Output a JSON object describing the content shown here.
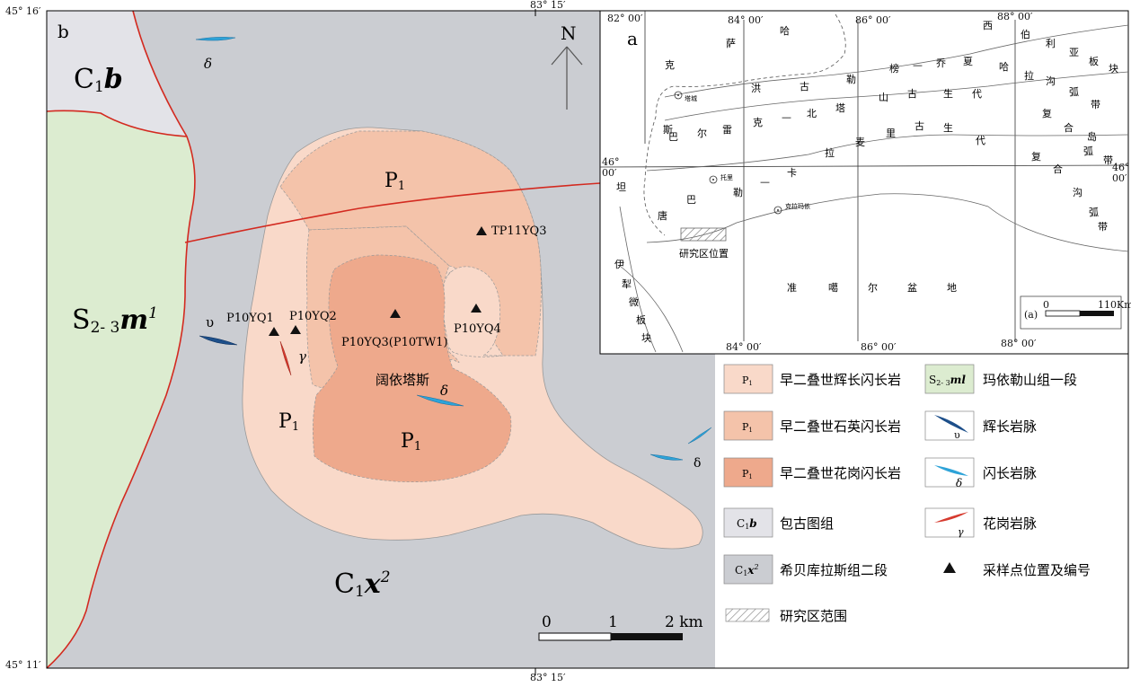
{
  "frame": {
    "lat_top": "45° 16′",
    "lat_bottom": "45° 11′",
    "lon_top": "83° 15′",
    "lon_bottom": "83° 15′"
  },
  "map_b": {
    "panel_label": "b",
    "north": "N",
    "unit_c1b": {
      "main": "C",
      "sub": "1",
      "ital": "b"
    },
    "unit_s23": {
      "main": "S",
      "sub": "2- 3",
      "ital": "m",
      "sup": "1"
    },
    "unit_c1x2": {
      "main": "C",
      "sub": "1",
      "ital": "x",
      "sup": "2"
    },
    "intrusions": [
      {
        "main": "P",
        "sub": "1"
      },
      {
        "main": "P",
        "sub": "1"
      },
      {
        "main": "P",
        "sub": "1"
      }
    ],
    "place_name": "阔依塔斯",
    "samples": [
      "TP11YQ3",
      "P10YQ1",
      "P10YQ2",
      "P10YQ3(P10TW1)",
      "P10YQ4"
    ],
    "dike_labels": {
      "delta": "δ",
      "upsilon": "υ",
      "gamma": "γ"
    },
    "scale": {
      "ticks": [
        "0",
        "1",
        "2 km"
      ]
    }
  },
  "inset_a": {
    "panel_label": "a",
    "lon_top": [
      "82° 00′",
      "84° 00′",
      "86° 00′",
      "88° 00′"
    ],
    "lon_bottom": [
      "84° 00′",
      "86° 00′",
      "88° 00′"
    ],
    "lat_left": [
      "46°",
      "00′"
    ],
    "lat_right": [
      "46°",
      "00′"
    ],
    "region_chars": [
      "西",
      "伯",
      "利",
      "亚",
      "板",
      "块",
      "哈",
      "拉",
      "沟",
      "弧",
      "带",
      "复",
      "合",
      "岛",
      "弧",
      "带",
      "复",
      "合",
      "沟",
      "弧",
      "带",
      "萨",
      "克",
      "哈",
      "斯",
      "洪",
      "古",
      "勒",
      "榜",
      "—",
      "乔",
      "夏",
      "巴",
      "尔",
      "雷",
      "克",
      "—",
      "北",
      "塔",
      "山",
      "古",
      "生",
      "代",
      "拉",
      "麦",
      "里",
      "古",
      "生",
      "代",
      "巴",
      "勒",
      "—",
      "卡",
      "坦",
      "唐",
      "伊",
      "犁",
      "微",
      "板",
      "块",
      "准",
      "噶",
      "尔",
      "盆",
      "地"
    ],
    "towns": [
      "塔城",
      "托里",
      "克拉玛依"
    ],
    "study_area": "研究区位置",
    "scale": {
      "start": "0",
      "end": "110Km",
      "tag": "(a)"
    }
  },
  "legend": {
    "items": [
      {
        "symbol": {
          "main": "P",
          "sub": "1"
        },
        "label": "早二叠世辉长闪长岩",
        "color": "#f9d9c9"
      },
      {
        "symbol": {
          "main": "S",
          "sub": "2- 3",
          "ital": "ml"
        },
        "label": "玛依勒山组一段",
        "color": "#dcecd0"
      },
      {
        "symbol": {
          "main": "P",
          "sub": "1"
        },
        "label": "早二叠世石英闪长岩",
        "color": "#f4c3aa"
      },
      {
        "symbol": {
          "greek": "υ"
        },
        "label": "辉长岩脉",
        "color": "#1d4f8a"
      },
      {
        "symbol": {
          "main": "P",
          "sub": "1"
        },
        "label": "早二叠世花岗闪长岩",
        "color": "#eea98c"
      },
      {
        "symbol": {
          "greek": "δ"
        },
        "label": "闪长岩脉",
        "color": "#2ea3d8"
      },
      {
        "symbol": {
          "main": "C",
          "sub": "1",
          "ital": "b"
        },
        "label": "包古图组",
        "color": "#e3e3e8"
      },
      {
        "symbol": {
          "greek": "γ"
        },
        "label": "花岗岩脉",
        "color": "#d63a2e"
      },
      {
        "symbol": {
          "main": "C",
          "sub": "1",
          "ital": "x",
          "sup": "2"
        },
        "label": "希贝库拉斯组二段",
        "color": "#cbcdd2"
      },
      {
        "symbol": {
          "mark": "▲"
        },
        "label": "采样点位置及编号",
        "color": "#111111"
      },
      {
        "symbol": {
          "hatch": true
        },
        "label": "研究区范围",
        "color": "#ffffff"
      }
    ]
  }
}
